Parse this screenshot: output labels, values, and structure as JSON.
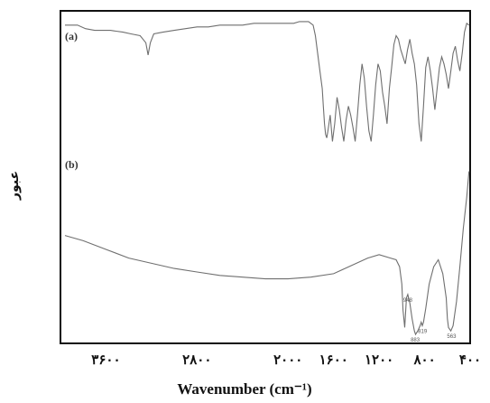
{
  "chart_data": {
    "type": "line",
    "xlabel": "Wavenumber (cm⁻¹)",
    "ylabel": "عبور",
    "xlim": [
      4000,
      400
    ],
    "xticks": [
      {
        "value": 3600,
        "label": "۳۶۰۰"
      },
      {
        "value": 2800,
        "label": "۲۸۰۰"
      },
      {
        "value": 2000,
        "label": "۲۰۰۰"
      },
      {
        "value": 1600,
        "label": "۱۶۰۰"
      },
      {
        "value": 1200,
        "label": "۱۲۰۰"
      },
      {
        "value": 800,
        "label": "۸۰۰"
      },
      {
        "value": 400,
        "label": "۴۰۰"
      }
    ],
    "grid": false,
    "series": [
      {
        "name": "(a)",
        "x": [
          3960,
          3850,
          3780,
          3700,
          3560,
          3450,
          3380,
          3300,
          3250,
          3230,
          3210,
          3180,
          3100,
          3000,
          2900,
          2800,
          2700,
          2600,
          2500,
          2400,
          2300,
          2200,
          2100,
          2000,
          1950,
          1900,
          1860,
          1820,
          1800,
          1780,
          1760,
          1740,
          1720,
          1700,
          1690,
          1680,
          1670,
          1660,
          1650,
          1630,
          1610,
          1590,
          1570,
          1550,
          1530,
          1510,
          1490,
          1470,
          1450,
          1430,
          1410,
          1390,
          1370,
          1350,
          1330,
          1310,
          1290,
          1270,
          1250,
          1230,
          1210,
          1190,
          1170,
          1150,
          1130,
          1110,
          1090,
          1070,
          1050,
          1030,
          1010,
          990,
          970,
          950,
          930,
          910,
          890,
          870,
          850,
          830,
          810,
          790,
          770,
          750,
          730,
          710,
          690,
          670,
          650,
          630,
          610,
          590,
          570,
          550,
          530,
          510,
          490,
          470,
          450,
          430,
          410
        ],
        "y": [
          96,
          96,
          94,
          93,
          93,
          92,
          91,
          90,
          86,
          79,
          86,
          91,
          92,
          93,
          94,
          95,
          95,
          96,
          96,
          96,
          97,
          97,
          97,
          97,
          97,
          98,
          98,
          98,
          97,
          96,
          90,
          80,
          70,
          60,
          50,
          40,
          34,
          32,
          36,
          45,
          30,
          40,
          55,
          48,
          38,
          30,
          42,
          50,
          45,
          38,
          30,
          45,
          62,
          74,
          66,
          50,
          36,
          30,
          45,
          62,
          74,
          70,
          58,
          50,
          40,
          60,
          72,
          85,
          90,
          88,
          82,
          78,
          74,
          82,
          88,
          80,
          74,
          62,
          40,
          30,
          50,
          72,
          78,
          70,
          60,
          48,
          60,
          72,
          78,
          74,
          68,
          60,
          70,
          80,
          84,
          76,
          70,
          80,
          92,
          97,
          96
        ]
      },
      {
        "name": "(b)",
        "x": [
          3960,
          3800,
          3600,
          3400,
          3200,
          3000,
          2800,
          2600,
          2400,
          2200,
          2000,
          1800,
          1600,
          1500,
          1400,
          1300,
          1200,
          1100,
          1050,
          1020,
          1000,
          990,
          975,
          960,
          948,
          930,
          910,
          890,
          880,
          860,
          840,
          830,
          820,
          810,
          790,
          760,
          720,
          680,
          640,
          610,
          600,
          590,
          570,
          550,
          520,
          490,
          460,
          430,
          410
        ],
        "y": [
          58,
          55,
          50,
          45,
          42,
          39,
          37,
          35,
          34,
          33,
          33,
          34,
          36,
          39,
          42,
          45,
          47,
          45,
          44,
          40,
          30,
          15,
          5,
          22,
          24,
          19,
          10,
          3,
          1,
          3,
          6,
          8,
          6,
          8,
          16,
          30,
          40,
          44,
          36,
          22,
          10,
          5,
          3,
          6,
          20,
          40,
          62,
          80,
          95
        ]
      }
    ],
    "curve_labels": [
      "(a)",
      "(b)"
    ],
    "peak_labels": [
      {
        "x": 948,
        "label": "948"
      },
      {
        "x": 883,
        "label": "883"
      },
      {
        "x": 819,
        "label": "819"
      },
      {
        "x": 563,
        "label": "563"
      }
    ]
  }
}
